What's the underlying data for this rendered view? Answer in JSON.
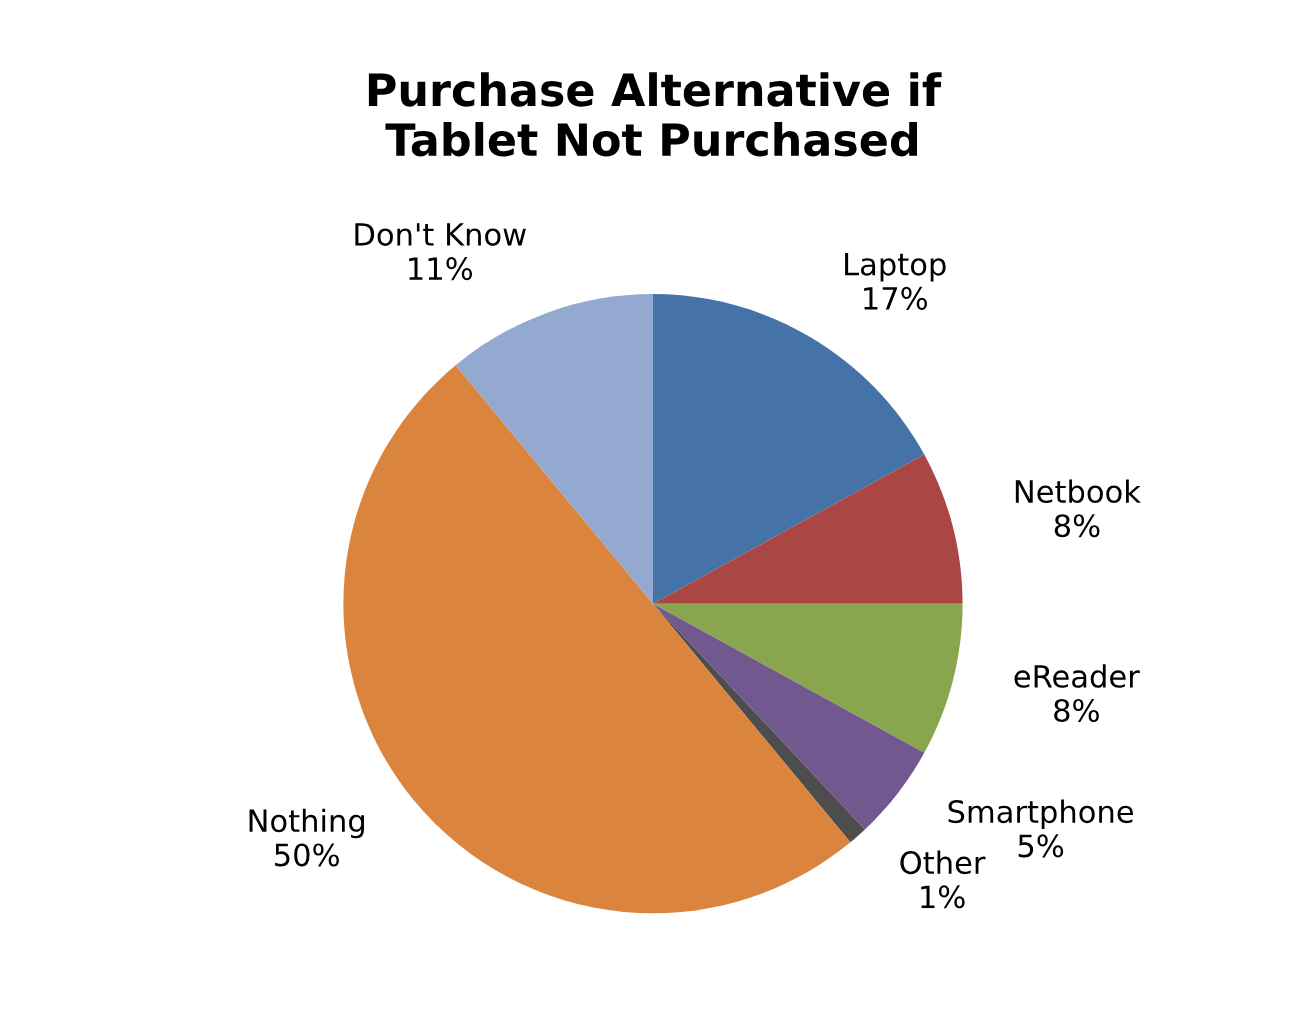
{
  "chart_data": {
    "type": "pie",
    "title": "Purchase Alternative if\nTablet Not Purchased",
    "categories": [
      "Laptop",
      "Netbook",
      "eReader",
      "Smartphone",
      "Other",
      "Nothing",
      "Don't Know"
    ],
    "values": [
      17,
      8,
      8,
      5,
      1,
      50,
      11
    ],
    "value_labels": [
      "17%",
      "8%",
      "8%",
      "5%",
      "1%",
      "50%",
      "11%"
    ],
    "colors": [
      "#4572a7",
      "#aa4643",
      "#89a54e",
      "#71588f",
      "#4d4d4d",
      "#db843d",
      "#93a9cf"
    ],
    "legend": false
  }
}
